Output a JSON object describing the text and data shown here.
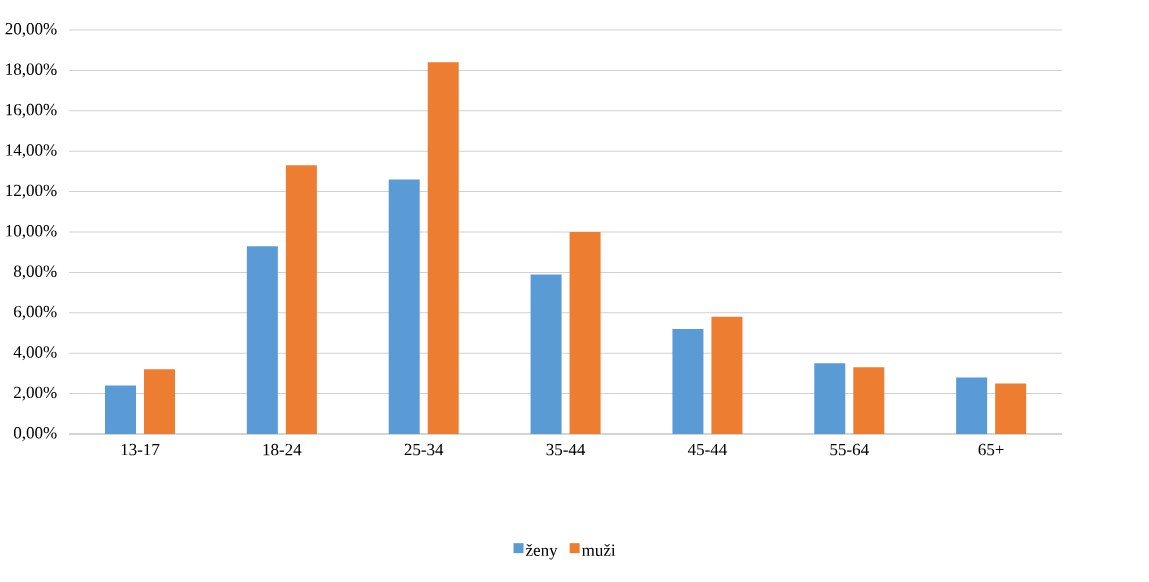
{
  "chart_data": {
    "type": "bar",
    "categories": [
      "13-17",
      "18-24",
      "25-34",
      "35-44",
      "45-44",
      "55-64",
      "65+"
    ],
    "series": [
      {
        "name": "ženy",
        "color": "#5b9bd5",
        "values": [
          2.4,
          9.3,
          12.6,
          7.9,
          5.2,
          3.5,
          2.8
        ]
      },
      {
        "name": "muži",
        "color": "#ed7d31",
        "values": [
          3.2,
          13.3,
          18.4,
          10.0,
          5.8,
          3.3,
          2.5
        ]
      }
    ],
    "ylim": [
      0,
      20
    ],
    "yticks": [
      {
        "value": 0,
        "label": "0,00%"
      },
      {
        "value": 2,
        "label": "2,00%"
      },
      {
        "value": 4,
        "label": "4,00%"
      },
      {
        "value": 6,
        "label": "6,00%"
      },
      {
        "value": 8,
        "label": "8,00%"
      },
      {
        "value": 10,
        "label": "10,00%"
      },
      {
        "value": 12,
        "label": "12,00%"
      },
      {
        "value": 14,
        "label": "14,00%"
      },
      {
        "value": 16,
        "label": "16,00%"
      },
      {
        "value": 18,
        "label": "18,00%"
      },
      {
        "value": 20,
        "label": "20,00%"
      }
    ],
    "grid": "y",
    "legend": "bottom"
  }
}
